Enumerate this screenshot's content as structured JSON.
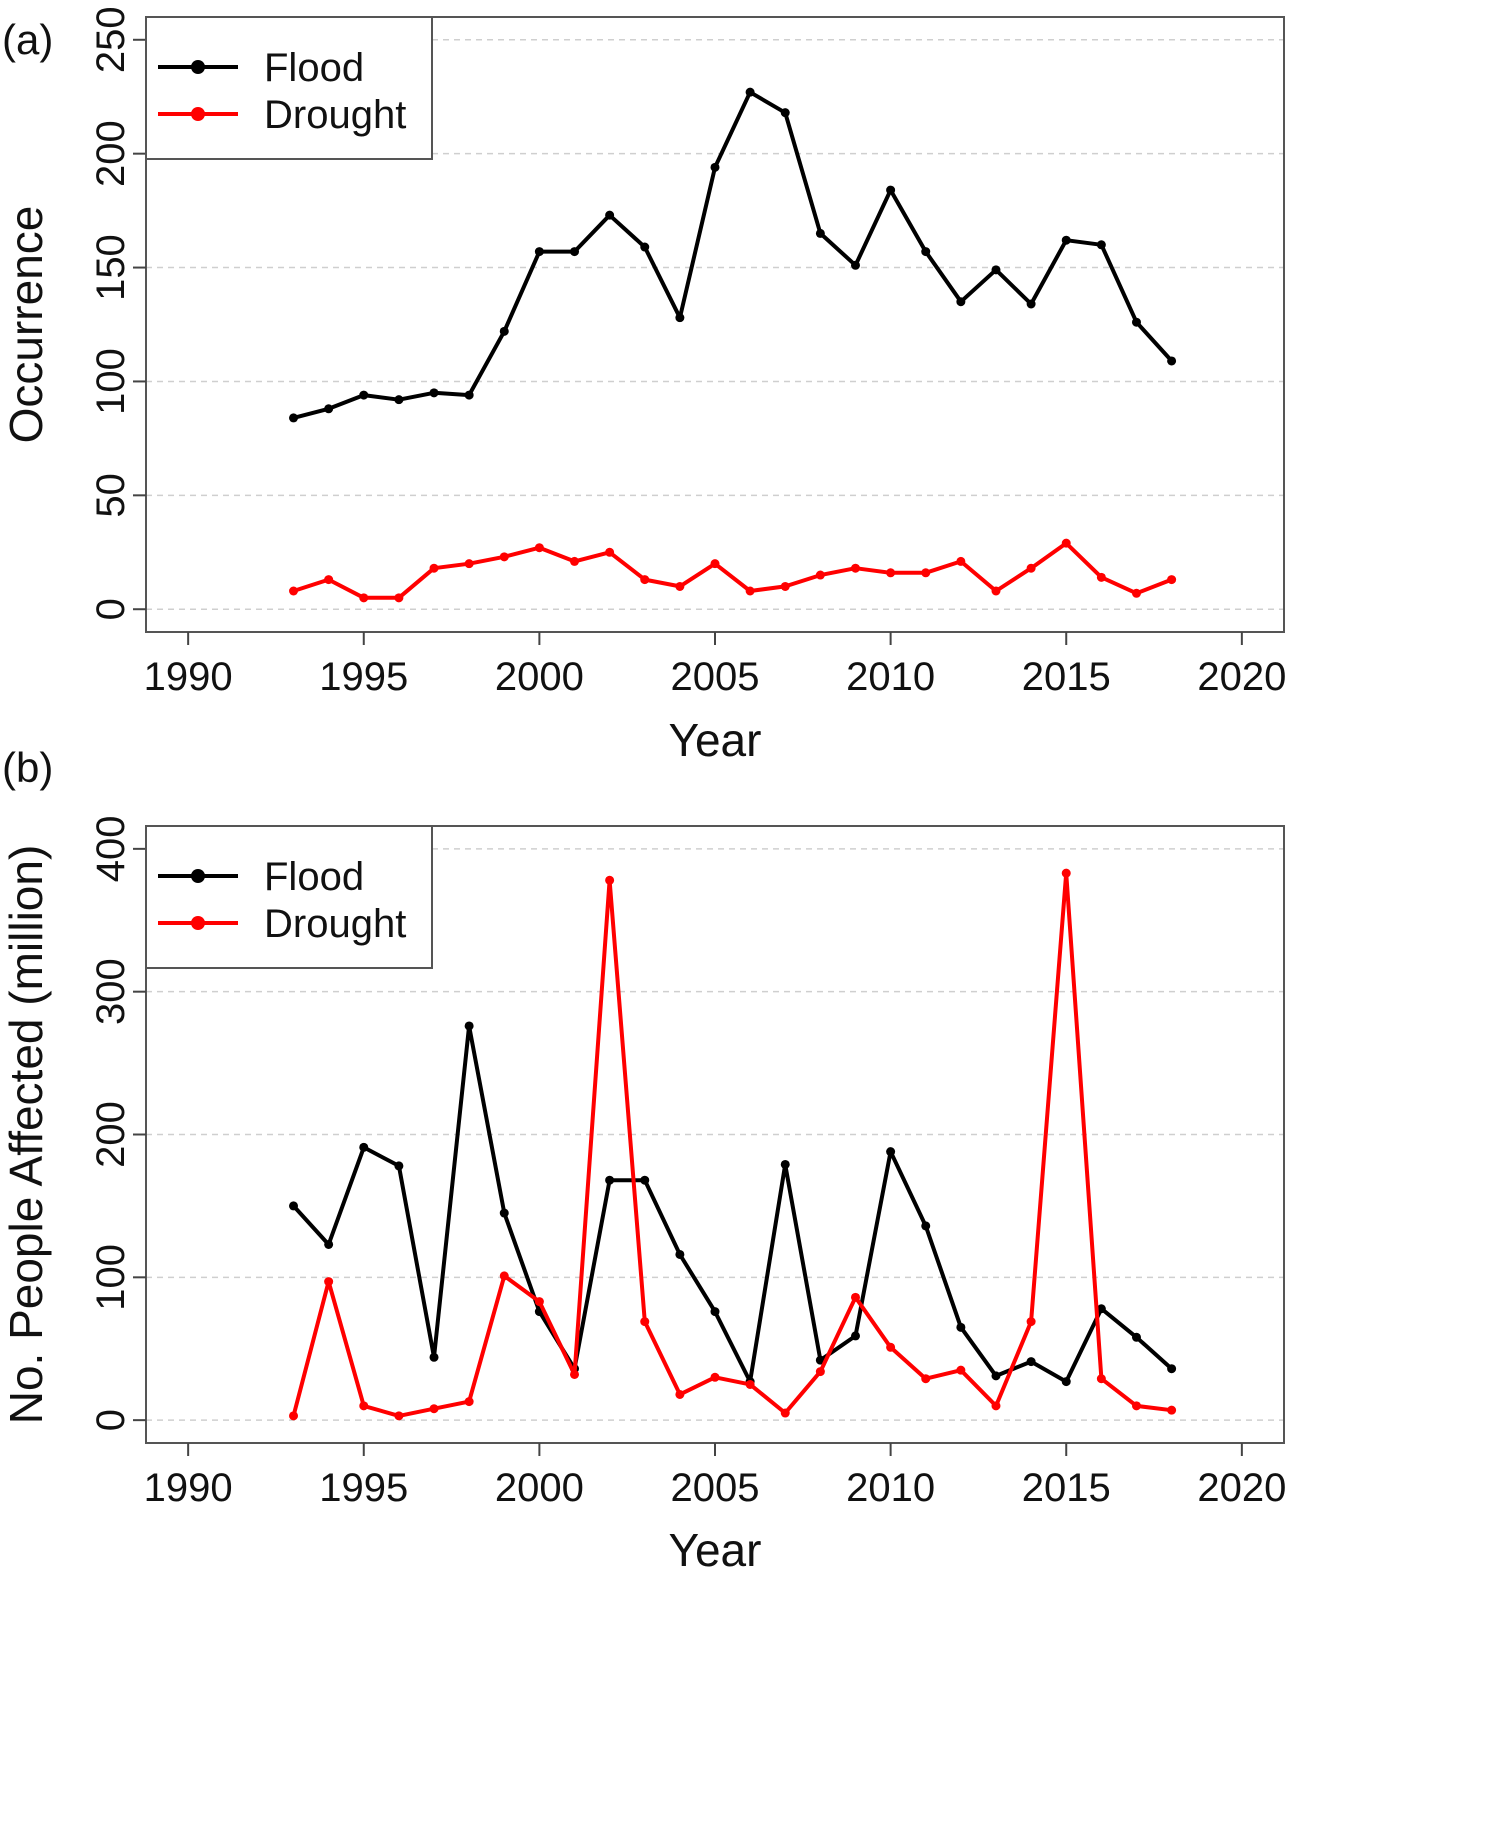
{
  "chart_data": [
    {
      "panel_label": "(a)",
      "type": "line",
      "title": "",
      "xlabel": "Year",
      "ylabel": "Occurrence",
      "xlim": [
        1990,
        2020
      ],
      "ylim": [
        0,
        250
      ],
      "xticks": [
        "1990",
        "1995",
        "2000",
        "2005",
        "2010",
        "2015",
        "2020"
      ],
      "yticks": [
        "0",
        "50",
        "100",
        "150",
        "200",
        "250"
      ],
      "grid": "horizontal dashed",
      "legend_position": "top-left",
      "x": [
        1993,
        1994,
        1995,
        1996,
        1997,
        1998,
        1999,
        2000,
        2001,
        2002,
        2003,
        2004,
        2005,
        2006,
        2007,
        2008,
        2009,
        2010,
        2011,
        2012,
        2013,
        2014,
        2015,
        2016,
        2017,
        2018
      ],
      "series": [
        {
          "name": "Flood",
          "color": "#000000",
          "values": [
            84,
            88,
            94,
            92,
            95,
            94,
            122,
            157,
            157,
            173,
            159,
            128,
            194,
            227,
            218,
            165,
            151,
            184,
            157,
            135,
            149,
            134,
            162,
            160,
            126,
            109
          ]
        },
        {
          "name": "Drought",
          "color": "#ff0000",
          "values": [
            8,
            13,
            5,
            5,
            18,
            20,
            23,
            27,
            21,
            25,
            13,
            10,
            20,
            8,
            10,
            15,
            18,
            16,
            16,
            21,
            8,
            18,
            29,
            14,
            7,
            13
          ]
        }
      ]
    },
    {
      "panel_label": "(b)",
      "type": "line",
      "title": "",
      "xlabel": "Year",
      "ylabel": "No. People Affected (million)",
      "xlim": [
        1990,
        2020
      ],
      "ylim": [
        0,
        400
      ],
      "xticks": [
        "1990",
        "1995",
        "2000",
        "2005",
        "2010",
        "2015",
        "2020"
      ],
      "yticks": [
        "0",
        "100",
        "200",
        "300",
        "400"
      ],
      "grid": "horizontal dashed",
      "legend_position": "top-left",
      "x": [
        1993,
        1994,
        1995,
        1996,
        1997,
        1998,
        1999,
        2000,
        2001,
        2002,
        2003,
        2004,
        2005,
        2006,
        2007,
        2008,
        2009,
        2010,
        2011,
        2012,
        2013,
        2014,
        2015,
        2016,
        2017,
        2018
      ],
      "series": [
        {
          "name": "Flood",
          "color": "#000000",
          "values": [
            150,
            123,
            191,
            178,
            44,
            276,
            145,
            76,
            36,
            168,
            168,
            116,
            76,
            27,
            179,
            42,
            59,
            188,
            136,
            65,
            31,
            41,
            27,
            78,
            58,
            36
          ]
        },
        {
          "name": "Drought",
          "color": "#ff0000",
          "values": [
            3,
            97,
            10,
            3,
            8,
            13,
            101,
            83,
            32,
            378,
            69,
            18,
            30,
            25,
            5,
            34,
            86,
            51,
            29,
            35,
            10,
            69,
            383,
            29,
            10,
            7
          ]
        }
      ]
    }
  ]
}
